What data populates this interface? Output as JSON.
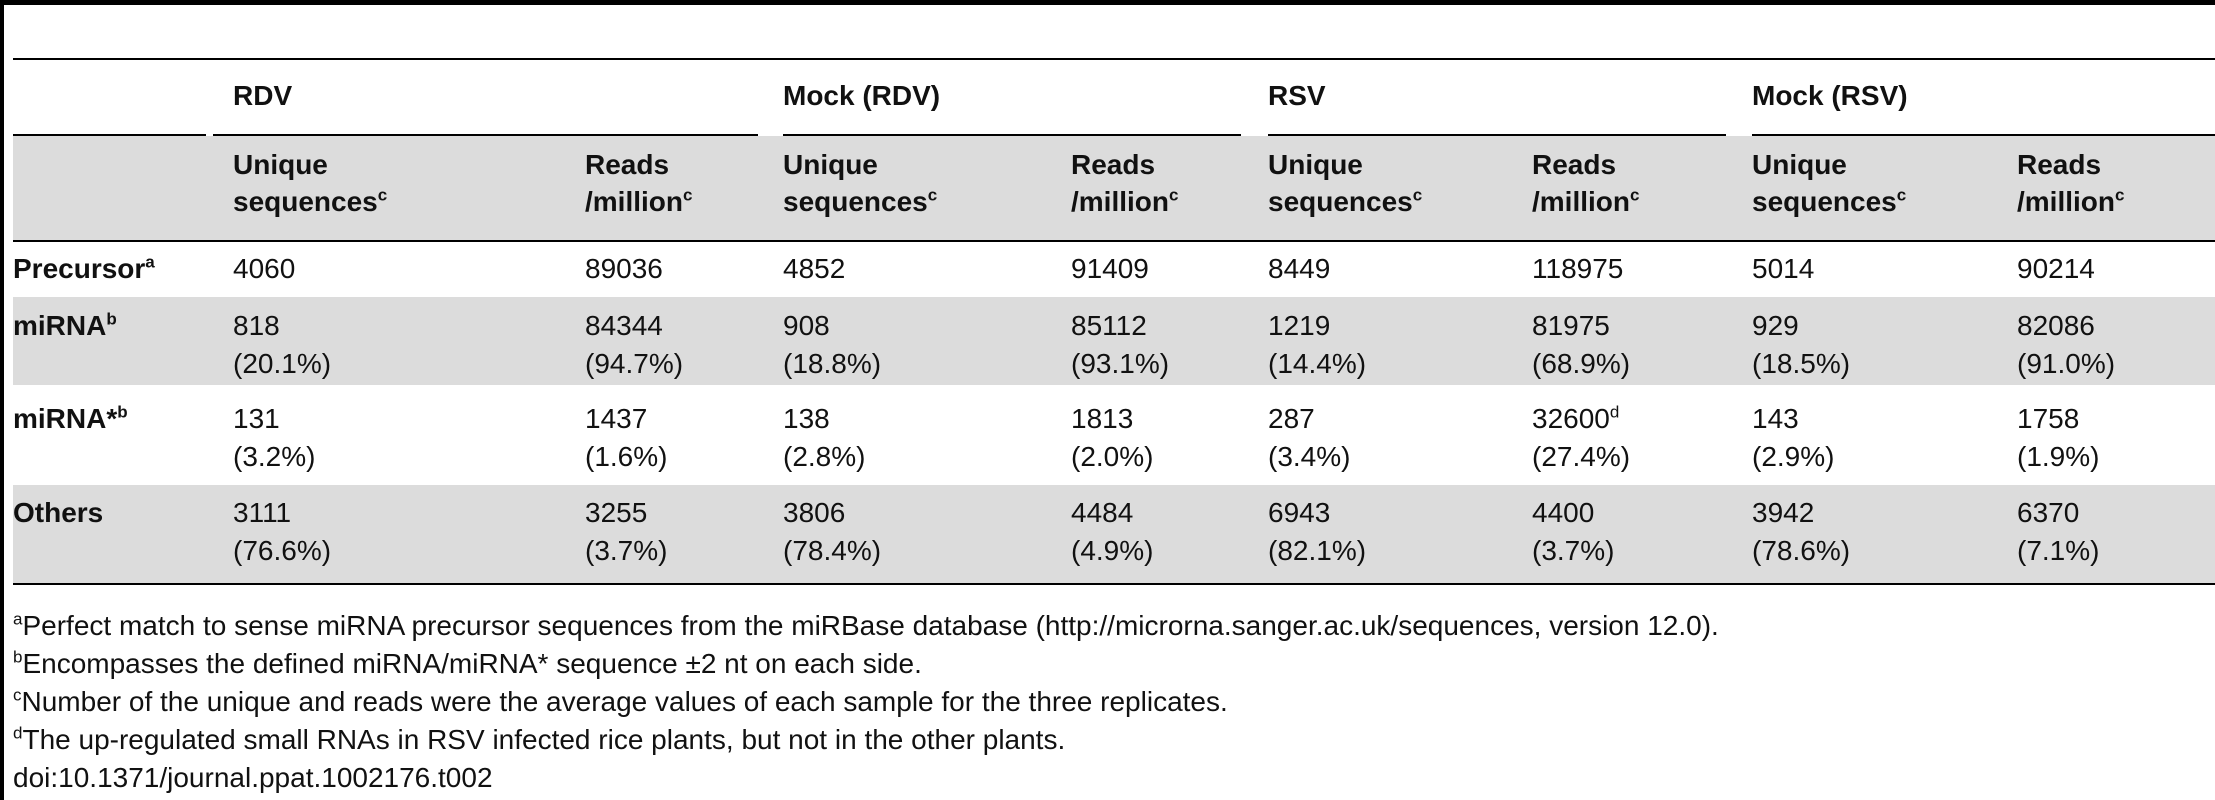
{
  "table": {
    "groups": [
      "RDV",
      "Mock (RDV)",
      "RSV",
      "Mock (RSV)"
    ],
    "subheaders": [
      {
        "line1": "Unique",
        "line2": "sequences",
        "sup": "c"
      },
      {
        "line1": "Reads",
        "line2": "/million",
        "sup": "c"
      }
    ],
    "rows": [
      {
        "label": "Precursor",
        "sup": "a",
        "cells": [
          {
            "v": "4060",
            "p": ""
          },
          {
            "v": "89036",
            "p": ""
          },
          {
            "v": "4852",
            "p": ""
          },
          {
            "v": "91409",
            "p": ""
          },
          {
            "v": "8449",
            "p": ""
          },
          {
            "v": "118975",
            "p": ""
          },
          {
            "v": "5014",
            "p": ""
          },
          {
            "v": "90214",
            "p": ""
          }
        ]
      },
      {
        "label": "miRNA",
        "sup": "b",
        "cells": [
          {
            "v": "818",
            "p": "(20.1%)"
          },
          {
            "v": "84344",
            "p": "(94.7%)"
          },
          {
            "v": "908",
            "p": "(18.8%)"
          },
          {
            "v": "85112",
            "p": "(93.1%)"
          },
          {
            "v": "1219",
            "p": "(14.4%)"
          },
          {
            "v": "81975",
            "p": "(68.9%)"
          },
          {
            "v": "929",
            "p": "(18.5%)"
          },
          {
            "v": "82086",
            "p": "(91.0%)"
          }
        ]
      },
      {
        "label": "miRNA*",
        "sup": "b",
        "cells": [
          {
            "v": "131",
            "p": "(3.2%)"
          },
          {
            "v": "1437",
            "p": "(1.6%)"
          },
          {
            "v": "138",
            "p": "(2.8%)"
          },
          {
            "v": "1813",
            "p": "(2.0%)"
          },
          {
            "v": "287",
            "p": "(3.4%)"
          },
          {
            "v": "32600",
            "p": "(27.4%)",
            "sup": "d"
          },
          {
            "v": "143",
            "p": "(2.9%)"
          },
          {
            "v": "1758",
            "p": "(1.9%)"
          }
        ]
      },
      {
        "label": "Others",
        "sup": "",
        "cells": [
          {
            "v": "3111",
            "p": "(76.6%)"
          },
          {
            "v": "3255",
            "p": "(3.7%)"
          },
          {
            "v": "3806",
            "p": "(78.4%)"
          },
          {
            "v": "4484",
            "p": "(4.9%)"
          },
          {
            "v": "6943",
            "p": "(82.1%)"
          },
          {
            "v": "4400",
            "p": "(3.7%)"
          },
          {
            "v": "3942",
            "p": "(78.6%)"
          },
          {
            "v": "6370",
            "p": "(7.1%)"
          }
        ]
      }
    ]
  },
  "footnotes": [
    {
      "mark": "a",
      "text": "Perfect match to sense miRNA precursor sequences from the miRBase database (http://microrna.sanger.ac.uk/sequences, version 12.0)."
    },
    {
      "mark": "b",
      "text": "Encompasses the defined miRNA/miRNA* sequence ±2 nt on each side."
    },
    {
      "mark": "c",
      "text": "Number of the unique and reads were the average values of each sample for the three replicates."
    },
    {
      "mark": "d",
      "text": "The up-regulated small RNAs in RSV infected rice plants, but not in the other plants."
    }
  ],
  "doi": "doi:10.1371/journal.ppat.1002176.t002"
}
